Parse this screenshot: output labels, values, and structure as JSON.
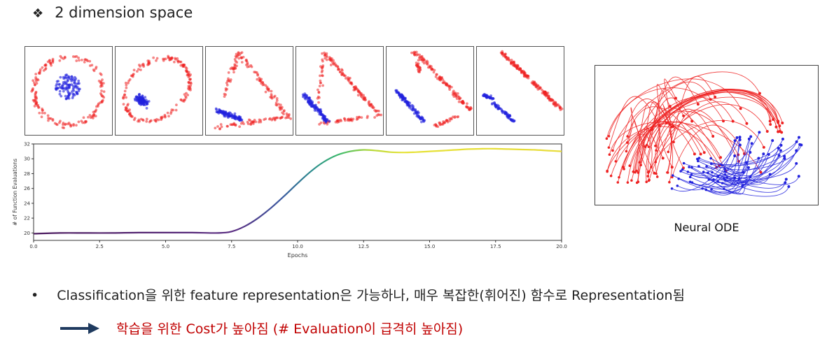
{
  "heading": {
    "bullet": "❖",
    "text": "2 dimension space"
  },
  "panels": [
    {
      "name": "panel-1",
      "shape": "circle"
    },
    {
      "name": "panel-2",
      "shape": "ellipse"
    },
    {
      "name": "panel-3",
      "shape": "triangle"
    },
    {
      "name": "panel-4",
      "shape": "triangle"
    },
    {
      "name": "panel-5",
      "shape": "triangle"
    },
    {
      "name": "panel-6",
      "shape": "line"
    }
  ],
  "chart_data": {
    "type": "line",
    "title": "",
    "xlabel": "Epochs",
    "ylabel": "# of Function Evaluations",
    "xlim": [
      0,
      20
    ],
    "ylim": [
      19,
      32
    ],
    "xticks": [
      "0.0",
      "2.5",
      "5.0",
      "7.5",
      "10.0",
      "12.5",
      "15.0",
      "17.5",
      "20.0"
    ],
    "yticks": [
      "20",
      "22",
      "24",
      "26",
      "28",
      "30",
      "32"
    ],
    "x": [
      0,
      1,
      2,
      3,
      4,
      5,
      6,
      7,
      7.5,
      8,
      8.5,
      9,
      9.5,
      10,
      10.5,
      11,
      11.5,
      12,
      12.5,
      13,
      13.5,
      14,
      14.5,
      15,
      15.5,
      16,
      16.5,
      17,
      17.5,
      18,
      18.5,
      19,
      19.5,
      20
    ],
    "y": [
      19.9,
      20.0,
      20.0,
      20.0,
      20.05,
      20.05,
      20.05,
      20.0,
      20.2,
      20.9,
      22.0,
      23.4,
      25.0,
      26.7,
      28.3,
      29.6,
      30.5,
      31.0,
      31.2,
      31.1,
      30.9,
      30.85,
      30.9,
      31.0,
      31.1,
      31.2,
      31.3,
      31.35,
      31.35,
      31.3,
      31.25,
      31.2,
      31.1,
      31.0
    ]
  },
  "colors": {
    "red": "#ee2222",
    "blue": "#2222dd",
    "accent": "#c00000",
    "arrow": "#1f3a5f"
  },
  "ode": {
    "label": "Neural ODE"
  },
  "bullets": {
    "dot": "•",
    "line1": "Classification을 위한 feature representation은 가능하나, 매우 복잡한(휘어진) 함수로 Representation됨",
    "line2": "학습을 위한 Cost가 높아짐 (# Evaluation이 급격히 높아짐)"
  }
}
